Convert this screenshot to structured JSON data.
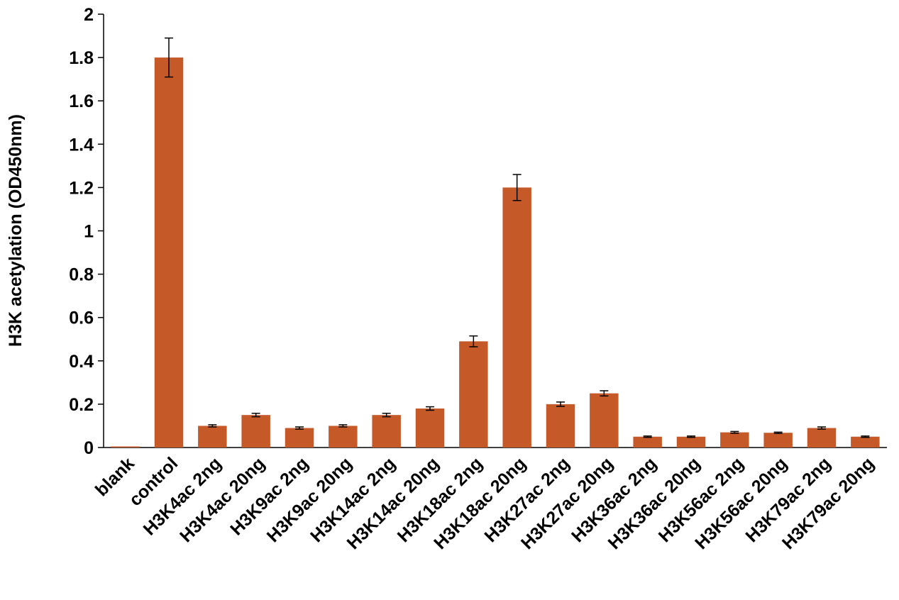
{
  "chart_data": {
    "type": "bar",
    "title": "",
    "xlabel": "",
    "ylabel": "H3K acetylation (OD450nm)",
    "ylim": [
      0,
      2
    ],
    "yticks": [
      "0",
      "0.2",
      "0.4",
      "0.6",
      "0.8",
      "1",
      "1.2",
      "1.4",
      "1.6",
      "1.8",
      "2"
    ],
    "categories": [
      "blank",
      "control",
      "H3K4ac 2ng",
      "H3K4ac 20ng",
      "H3K9ac 2ng",
      "H3K9ac 20ng",
      "H3K14ac 2ng",
      "H3K14ac 20ng",
      "H3K18ac 2ng",
      "H3K18ac 20ng",
      "H3K27ac 2ng",
      "H3K27ac 20ng",
      "H3K36ac 2ng",
      "H3K36ac 20ng",
      "H3K56ac 2ng",
      "H3K56ac 20ng",
      "H3K79ac 2ng",
      "H3K79ac 20ng"
    ],
    "values": [
      0.005,
      1.8,
      0.1,
      0.15,
      0.09,
      0.1,
      0.15,
      0.18,
      0.49,
      1.2,
      0.2,
      0.25,
      0.05,
      0.05,
      0.07,
      0.068,
      0.09,
      0.05
    ],
    "errors": [
      0.0,
      0.09,
      0.005,
      0.008,
      0.005,
      0.005,
      0.008,
      0.008,
      0.025,
      0.06,
      0.01,
      0.012,
      0.003,
      0.003,
      0.004,
      0.003,
      0.005,
      0.003
    ],
    "grid": false,
    "legend": "none",
    "colors": {
      "bar": "#C55A28",
      "axis": "#000000",
      "errorbar": "#000000"
    }
  }
}
